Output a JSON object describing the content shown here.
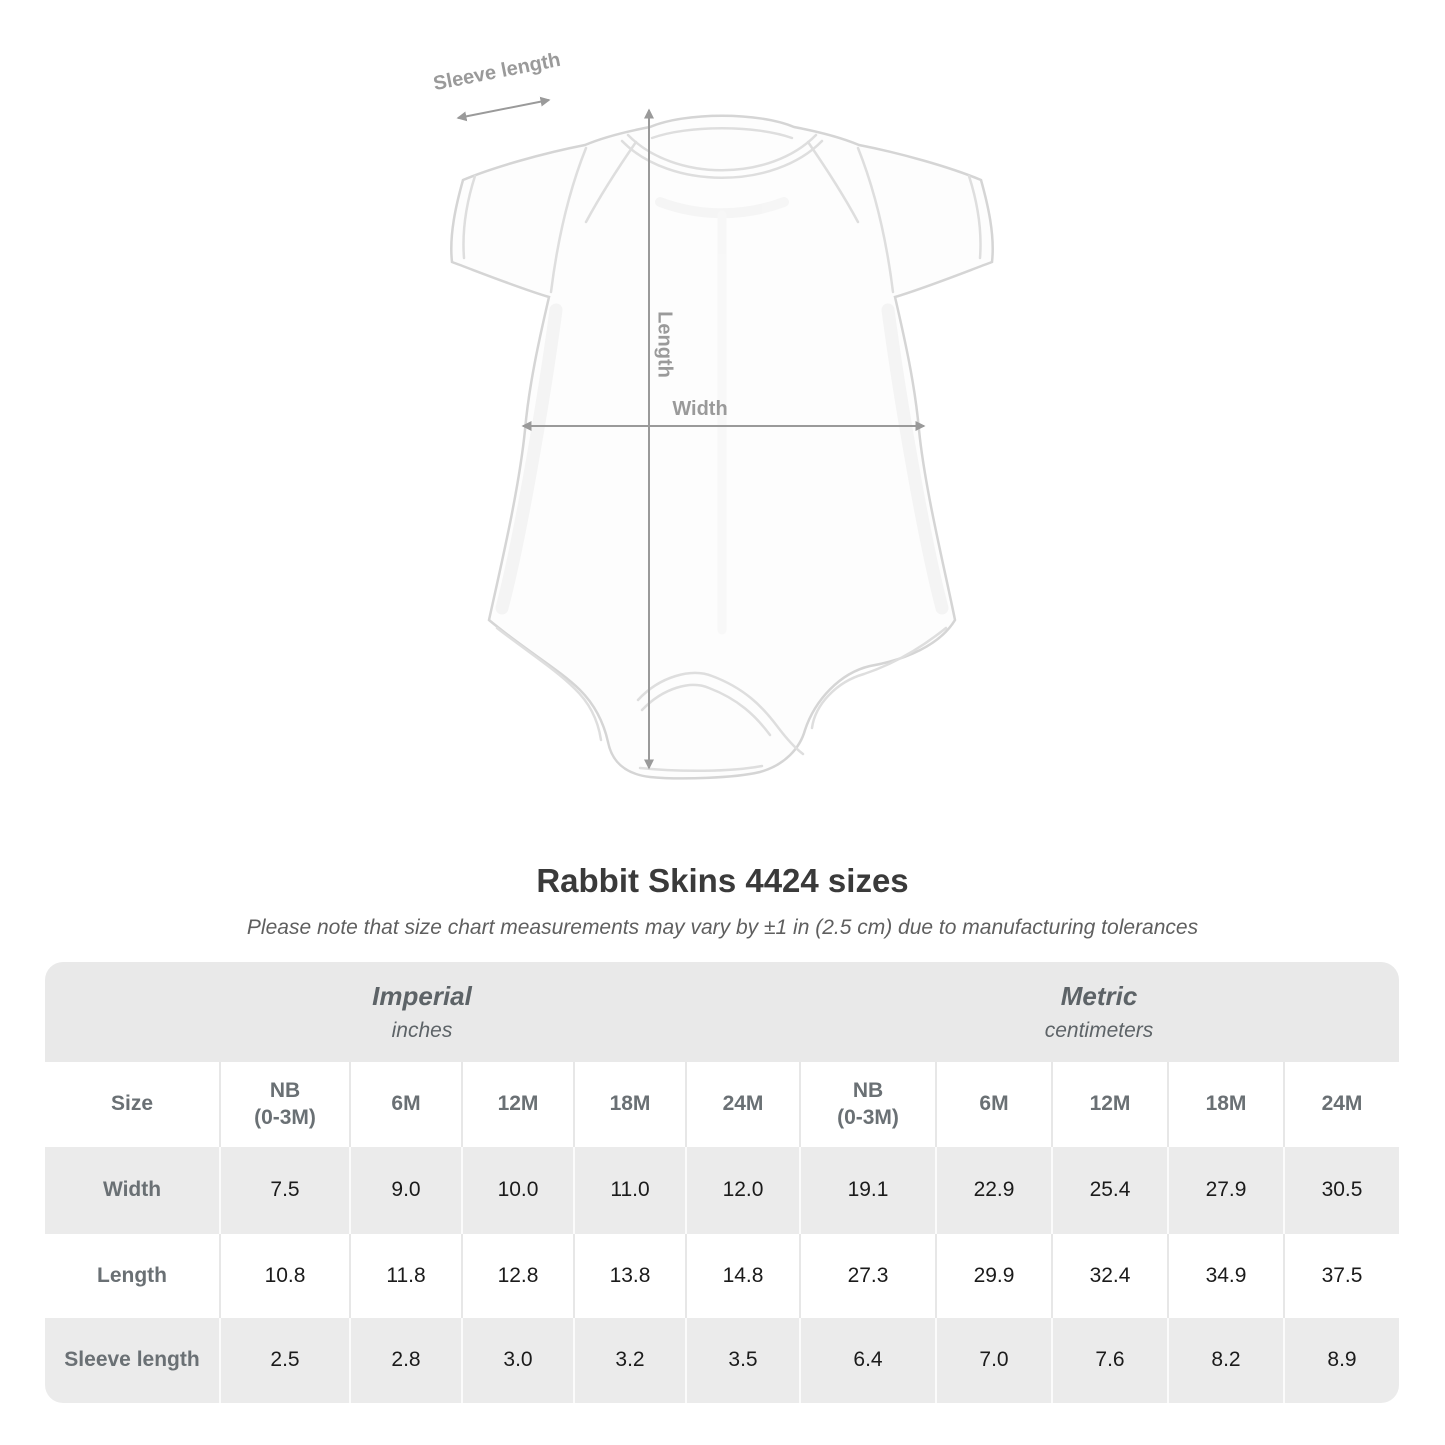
{
  "diagram": {
    "sleeve_label": "Sleeve length",
    "length_label": "Length",
    "width_label": "Width",
    "annotation_color": "#9a9a9a"
  },
  "title": "Rabbit Skins 4424 sizes",
  "subtitle": "Please note that size chart measurements may vary by ±1 in (2.5 cm) due to manufacturing tolerances",
  "chart_data": {
    "type": "table",
    "title": "Rabbit Skins 4424 sizes",
    "note": "Please note that size chart measurements may vary by ±1 in (2.5 cm) due to manufacturing tolerances",
    "size_label": "Size",
    "sections": [
      {
        "name": "Imperial",
        "unit": "inches",
        "columns": [
          "NB\n(0-3M)",
          "6M",
          "12M",
          "18M",
          "24M"
        ]
      },
      {
        "name": "Metric",
        "unit": "centimeters",
        "columns": [
          "NB\n(0-3M)",
          "6M",
          "12M",
          "18M",
          "24M"
        ]
      }
    ],
    "rows": [
      {
        "label": "Width",
        "imperial": [
          "7.5",
          "9.0",
          "10.0",
          "11.0",
          "12.0"
        ],
        "metric": [
          "19.1",
          "22.9",
          "25.4",
          "27.9",
          "30.5"
        ]
      },
      {
        "label": "Length",
        "imperial": [
          "10.8",
          "11.8",
          "12.8",
          "13.8",
          "14.8"
        ],
        "metric": [
          "27.3",
          "29.9",
          "32.4",
          "34.9",
          "37.5"
        ]
      },
      {
        "label": "Sleeve length",
        "imperial": [
          "2.5",
          "2.8",
          "3.0",
          "3.2",
          "3.5"
        ],
        "metric": [
          "6.4",
          "7.0",
          "7.6",
          "8.2",
          "8.9"
        ]
      }
    ]
  },
  "colors": {
    "band_bg": "#e9e9e9",
    "row_alt_bg": "#ebebeb",
    "header_text": "#6a7074",
    "value_text": "#1b1b1b",
    "title_text": "#3a3a3a",
    "annotation": "#9a9a9a"
  }
}
